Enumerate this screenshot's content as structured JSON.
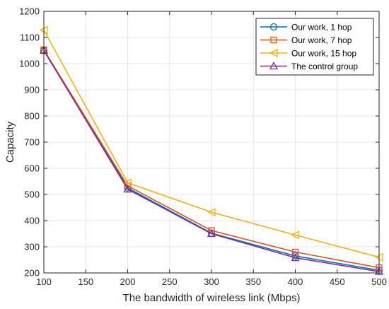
{
  "chart_data": {
    "type": "line",
    "xlabel": "The bandwidth of wireless link (Mbps)",
    "ylabel": "Capacity",
    "xlim": [
      100,
      500
    ],
    "ylim": [
      200,
      1200
    ],
    "xticks": [
      100,
      150,
      200,
      250,
      300,
      350,
      400,
      450,
      500
    ],
    "yticks": [
      200,
      300,
      400,
      500,
      600,
      700,
      800,
      900,
      1000,
      1100,
      1200
    ],
    "grid": true,
    "legend_position": "top-right",
    "x": [
      100,
      200,
      300,
      400,
      500
    ],
    "series": [
      {
        "name": "Our work, 1 hop",
        "marker": "circle",
        "color": "#0072BD",
        "values": [
          1050,
          525,
          352,
          265,
          210
        ]
      },
      {
        "name": "Our work, 7 hop",
        "marker": "square",
        "color": "#D95319",
        "values": [
          1053,
          533,
          362,
          280,
          220
        ]
      },
      {
        "name": "Our work, 15 hop",
        "marker": "triangle-left",
        "color": "#EDB120",
        "values": [
          1128,
          545,
          432,
          345,
          260
        ]
      },
      {
        "name": "The control group",
        "marker": "triangle-up",
        "color": "#7E2F8E",
        "values": [
          1050,
          520,
          350,
          258,
          205
        ]
      }
    ]
  }
}
